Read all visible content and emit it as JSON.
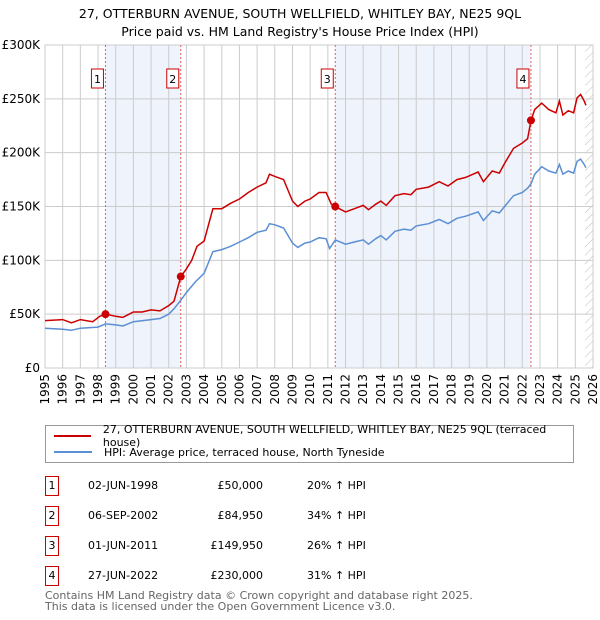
{
  "title": "27, OTTERBURN AVENUE, SOUTH WELLFIELD, WHITLEY BAY, NE25 9QL",
  "subtitle": "Price paid vs. HM Land Registry's House Price Index (HPI)",
  "colors": {
    "property": "#cc0000",
    "hpi": "#5b8fd4",
    "shade": "#eef3fc"
  },
  "chart_data": {
    "type": "line",
    "title": "27, OTTERBURN AVENUE, SOUTH WELLFIELD, WHITLEY BAY, NE25 9QL",
    "xlim": [
      1995,
      2026
    ],
    "ylim": [
      0,
      300000
    ],
    "y_ticks": [
      {
        "v": 0,
        "label": "£0"
      },
      {
        "v": 50000,
        "label": "£50K"
      },
      {
        "v": 100000,
        "label": "£100K"
      },
      {
        "v": 150000,
        "label": "£150K"
      },
      {
        "v": 200000,
        "label": "£200K"
      },
      {
        "v": 250000,
        "label": "£250K"
      },
      {
        "v": 300000,
        "label": "£300K"
      }
    ],
    "x_ticks": [
      "1995",
      "1996",
      "1997",
      "1998",
      "1999",
      "2000",
      "2001",
      "2002",
      "2003",
      "2004",
      "2005",
      "2006",
      "2007",
      "2008",
      "2009",
      "2010",
      "2011",
      "2012",
      "2013",
      "2014",
      "2015",
      "2016",
      "2017",
      "2018",
      "2019",
      "2020",
      "2021",
      "2022",
      "2023",
      "2024",
      "2025",
      "2026"
    ],
    "grid": true,
    "legend_placement": "below",
    "series": [
      {
        "name": "27, OTTERBURN AVENUE, SOUTH WELLFIELD, WHITLEY BAY, NE25 9QL (terraced house)",
        "x": [
          1995,
          1996,
          1996.5,
          1997,
          1997.7,
          1998.1,
          1998.42,
          1999,
          1999.4,
          2000,
          2000.5,
          2001,
          2001.5,
          2002,
          2002.3,
          2002.68,
          2003,
          2003.3,
          2003.6,
          2004,
          2004.5,
          2005,
          2005.5,
          2006,
          2006.5,
          2007,
          2007.5,
          2007.7,
          2008,
          2008.5,
          2009,
          2009.3,
          2009.7,
          2010,
          2010.5,
          2010.9,
          2011.2,
          2011.42,
          2012,
          2012.5,
          2013,
          2013.3,
          2013.7,
          2014,
          2014.3,
          2014.8,
          2015.3,
          2015.7,
          2016,
          2016.7,
          2017.3,
          2017.8,
          2018.3,
          2018.8,
          2019.5,
          2019.8,
          2020.3,
          2020.7,
          2021,
          2021.5,
          2022,
          2022.3,
          2022.49,
          2022.7,
          2023.1,
          2023.5,
          2023.9,
          2024.1,
          2024.3,
          2024.6,
          2024.9,
          2025.1,
          2025.3,
          2025.5,
          2025.6
        ],
        "values": [
          44000,
          45000,
          42000,
          45000,
          43000,
          48000,
          50000,
          48000,
          47000,
          52000,
          52000,
          54000,
          53000,
          58000,
          62000,
          84950,
          92000,
          100000,
          113000,
          118000,
          148000,
          148000,
          153000,
          157000,
          163000,
          168000,
          172000,
          180000,
          178000,
          175000,
          155000,
          150000,
          155000,
          157000,
          163000,
          163000,
          152000,
          149950,
          145000,
          148000,
          151000,
          147000,
          152000,
          155000,
          151000,
          160000,
          162000,
          161000,
          166000,
          168000,
          173000,
          169000,
          175000,
          177000,
          182000,
          173000,
          183000,
          181000,
          190000,
          204000,
          209000,
          213000,
          230000,
          240000,
          246000,
          240000,
          237000,
          248000,
          235000,
          239000,
          237000,
          251000,
          254000,
          248000,
          244000
        ]
      },
      {
        "name": "HPI: Average price, terraced house, North Tyneside",
        "x": [
          1995,
          1996,
          1996.5,
          1997,
          1998,
          1998.42,
          1999,
          1999.4,
          2000,
          2001,
          2001.5,
          2002,
          2002.3,
          2002.68,
          2003,
          2003.5,
          2004,
          2004.5,
          2005,
          2005.5,
          2006,
          2006.5,
          2007,
          2007.5,
          2007.7,
          2008,
          2008.5,
          2009,
          2009.3,
          2009.7,
          2010,
          2010.5,
          2010.9,
          2011.1,
          2011.42,
          2012,
          2012.5,
          2013,
          2013.3,
          2013.7,
          2014,
          2014.3,
          2014.8,
          2015.3,
          2015.7,
          2016,
          2016.7,
          2017.3,
          2017.8,
          2018.3,
          2018.8,
          2019.5,
          2019.8,
          2020.3,
          2020.7,
          2021,
          2021.5,
          2022,
          2022.3,
          2022.49,
          2022.7,
          2023.1,
          2023.5,
          2023.9,
          2024.1,
          2024.3,
          2024.6,
          2024.9,
          2025.1,
          2025.3,
          2025.5,
          2025.6
        ],
        "values": [
          37000,
          36000,
          35000,
          37000,
          38000,
          41000,
          40000,
          39000,
          43000,
          45000,
          46000,
          50000,
          55000,
          63000,
          70000,
          80000,
          88000,
          108000,
          110000,
          113000,
          117000,
          121000,
          126000,
          128000,
          134000,
          133000,
          130000,
          116000,
          112000,
          116000,
          117000,
          121000,
          120000,
          111000,
          119000,
          115000,
          117000,
          119000,
          115000,
          120000,
          123000,
          119000,
          127000,
          129000,
          128000,
          132000,
          134000,
          138000,
          134000,
          139000,
          141000,
          145000,
          137000,
          146000,
          144000,
          150000,
          160000,
          163000,
          167000,
          171000,
          180000,
          187000,
          183000,
          181000,
          189000,
          180000,
          183000,
          181000,
          192000,
          194000,
          189000,
          186000
        ]
      }
    ],
    "sales": [
      {
        "n": "1",
        "x": 1998.42,
        "price": 50000
      },
      {
        "n": "2",
        "x": 2002.68,
        "price": 84950
      },
      {
        "n": "3",
        "x": 2011.42,
        "price": 149950
      },
      {
        "n": "4",
        "x": 2022.49,
        "price": 230000
      }
    ],
    "shaded_ranges": [
      [
        1998.42,
        2002.68
      ],
      [
        2011.42,
        2022.49
      ]
    ],
    "forecast_hatch_from": 2025.55
  },
  "legend": {
    "property": "27, OTTERBURN AVENUE, SOUTH WELLFIELD, WHITLEY BAY, NE25 9QL (terraced house)",
    "hpi": "HPI: Average price, terraced house, North Tyneside"
  },
  "transactions": [
    {
      "n": "1",
      "date": "02-JUN-1998",
      "price": "£50,000",
      "hpi": "20% ↑ HPI"
    },
    {
      "n": "2",
      "date": "06-SEP-2002",
      "price": "£84,950",
      "hpi": "34% ↑ HPI"
    },
    {
      "n": "3",
      "date": "01-JUN-2011",
      "price": "£149,950",
      "hpi": "26% ↑ HPI"
    },
    {
      "n": "4",
      "date": "27-JUN-2022",
      "price": "£230,000",
      "hpi": "31% ↑ HPI"
    }
  ],
  "footer": {
    "line1": "Contains HM Land Registry data © Crown copyright and database right 2025.",
    "line2": "This data is licensed under the Open Government Licence v3.0."
  }
}
